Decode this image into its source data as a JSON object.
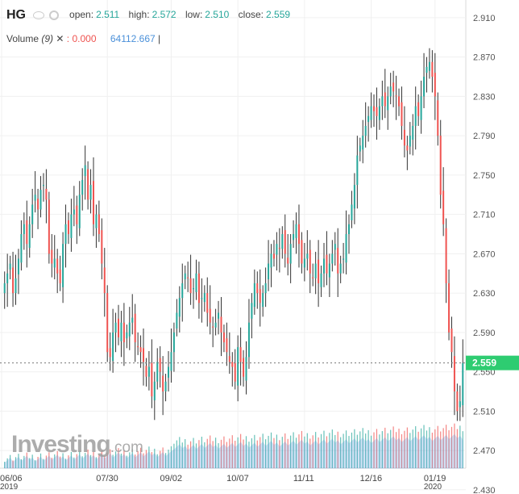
{
  "header": {
    "symbol": "HG",
    "open_label": "open:",
    "open_value": "2.511",
    "high_label": "high:",
    "high_value": "2.572",
    "low_label": "low:",
    "low_value": "2.510",
    "close_label": "close:",
    "close_value": "2.559"
  },
  "volume_legend": {
    "label": "Volume",
    "period": "(9)",
    "value_1": ": 0.000",
    "value_2": "64112.667",
    "separator": "|"
  },
  "watermark": {
    "brand": "Investing",
    "suffix": ".com"
  },
  "price_tag": "2.559",
  "colors": {
    "up": "#26a69a",
    "down": "#ef5350",
    "price_tag": "#2ecc71",
    "volume_area": "#4a90d9"
  },
  "chart_data": {
    "type": "candlestick",
    "title": "",
    "ylim": [
      2.452,
      2.928
    ],
    "y_ticks": [
      "2.910",
      "2.870",
      "2.830",
      "2.790",
      "2.750",
      "2.710",
      "2.670",
      "2.630",
      "2.590",
      "2.550",
      "2.510",
      "2.470",
      "2.430"
    ],
    "x_ticks": [
      {
        "label": "06/06",
        "sub": "2019",
        "index": 0
      },
      {
        "label": "07/30",
        "sub": "",
        "index": 37
      },
      {
        "label": "09/02",
        "sub": "",
        "index": 60
      },
      {
        "label": "10/07",
        "sub": "",
        "index": 84
      },
      {
        "label": "11/11",
        "sub": "",
        "index": 108
      },
      {
        "label": "12/16",
        "sub": "",
        "index": 132
      },
      {
        "label": "01/19",
        "sub": "2020",
        "index": 155
      }
    ],
    "last_close": 2.559,
    "grid": true,
    "close": [
      2.64,
      2.65,
      2.66,
      2.63,
      2.645,
      2.665,
      2.69,
      2.7,
      2.68,
      2.7,
      2.72,
      2.73,
      2.715,
      2.735,
      2.74,
      2.725,
      2.67,
      2.66,
      2.665,
      2.65,
      2.64,
      2.68,
      2.7,
      2.69,
      2.71,
      2.715,
      2.7,
      2.73,
      2.745,
      2.76,
      2.725,
      2.74,
      2.7,
      2.71,
      2.69,
      2.66,
      2.63,
      2.57,
      2.565,
      2.59,
      2.6,
      2.585,
      2.6,
      2.58,
      2.59,
      2.6,
      2.605,
      2.58,
      2.575,
      2.57,
      2.56,
      2.545,
      2.555,
      2.525,
      2.54,
      2.56,
      2.55,
      2.53,
      2.54,
      2.555,
      2.57,
      2.59,
      2.61,
      2.625,
      2.64,
      2.65,
      2.645,
      2.63,
      2.635,
      2.65,
      2.62,
      2.625,
      2.63,
      2.61,
      2.6,
      2.595,
      2.6,
      2.61,
      2.59,
      2.58,
      2.57,
      2.56,
      2.555,
      2.54,
      2.575,
      2.56,
      2.545,
      2.565,
      2.6,
      2.62,
      2.64,
      2.63,
      2.62,
      2.63,
      2.64,
      2.66,
      2.67,
      2.665,
      2.68,
      2.675,
      2.69,
      2.67,
      2.66,
      2.68,
      2.69,
      2.7,
      2.68,
      2.66,
      2.665,
      2.67,
      2.65,
      2.645,
      2.66,
      2.64,
      2.65,
      2.665,
      2.65,
      2.66,
      2.67,
      2.68,
      2.65,
      2.66,
      2.665,
      2.69,
      2.7,
      2.72,
      2.74,
      2.77,
      2.78,
      2.79,
      2.8,
      2.81,
      2.82,
      2.815,
      2.81,
      2.82,
      2.83,
      2.82,
      2.83,
      2.84,
      2.835,
      2.83,
      2.82,
      2.8,
      2.78,
      2.775,
      2.79,
      2.8,
      2.82,
      2.81,
      2.83,
      2.85,
      2.86,
      2.865,
      2.85,
      2.83,
      2.79,
      2.73,
      2.7,
      2.64,
      2.59,
      2.57,
      2.53,
      2.51,
      2.52,
      2.559
    ],
    "ohlc_note": "values approximated from candle bodies",
    "volume_axis": "unlabeled"
  }
}
